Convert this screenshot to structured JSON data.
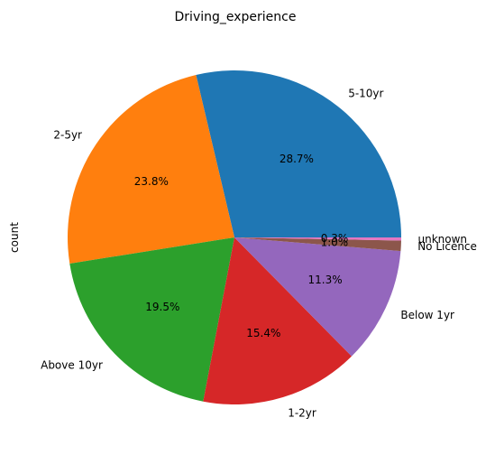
{
  "chart_data": {
    "type": "pie",
    "title": "Driving_experience",
    "ylabel": "count",
    "slices": [
      {
        "label": "5-10yr",
        "percent": 28.7,
        "pct_text": "28.7%",
        "color": "#1f77b4"
      },
      {
        "label": "2-5yr",
        "percent": 23.8,
        "pct_text": "23.8%",
        "color": "#ff7f0e"
      },
      {
        "label": "Above 10yr",
        "percent": 19.5,
        "pct_text": "19.5%",
        "color": "#2ca02c"
      },
      {
        "label": "1-2yr",
        "percent": 15.4,
        "pct_text": "15.4%",
        "color": "#d62728"
      },
      {
        "label": "Below 1yr",
        "percent": 11.3,
        "pct_text": "11.3%",
        "color": "#9467bd"
      },
      {
        "label": "No Licence",
        "percent": 1.0,
        "pct_text": "1.0%",
        "color": "#8c564b"
      },
      {
        "label": "unknown",
        "percent": 0.3,
        "pct_text": "0.3%",
        "color": "#e377c2"
      }
    ],
    "start_angle": 0,
    "direction": "counterclockwise"
  }
}
